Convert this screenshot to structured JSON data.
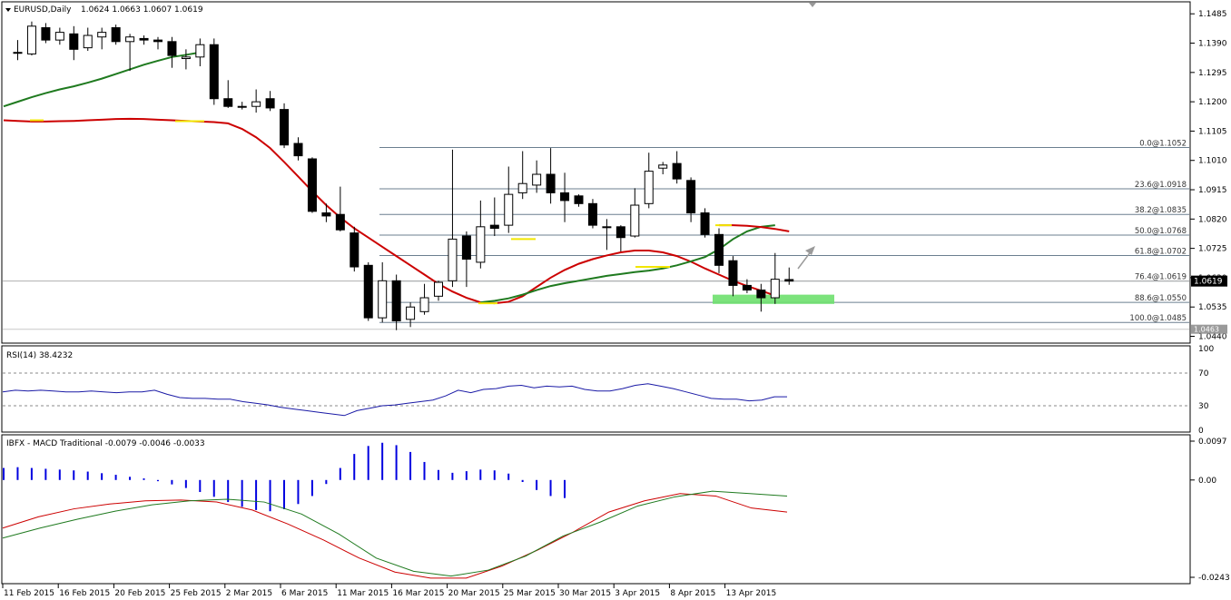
{
  "chart_data": [
    {
      "type": "candlestick",
      "title": "EURUSD,Daily",
      "ohlc_header": "1.0624 1.0663 1.0607 1.0619",
      "current_price_label": "1.0619",
      "low_price_label": "1.0463",
      "ylim": [
        1.0418,
        1.1518
      ],
      "y_ticks": [
        "1.1485",
        "1.1390",
        "1.1295",
        "1.1200",
        "1.1105",
        "1.1010",
        "1.0915",
        "1.0820",
        "1.0725",
        "1.0630",
        "1.0535",
        "1.0440"
      ],
      "x_tick_labels": [
        "11 Feb 2015",
        "16 Feb 2015",
        "20 Feb 2015",
        "25 Feb 2015",
        "2 Mar 2015",
        "6 Mar 2015",
        "11 Mar 2015",
        "16 Mar 2015",
        "20 Mar 2015",
        "25 Mar 2015",
        "30 Mar 2015",
        "3 Apr 2015",
        "8 Apr 2015",
        "13 Apr 2015"
      ],
      "candles": [
        [
          1.136,
          1.14,
          1.1335,
          1.136
        ],
        [
          1.1355,
          1.146,
          1.135,
          1.1445
        ],
        [
          1.144,
          1.1455,
          1.139,
          1.14
        ],
        [
          1.14,
          1.144,
          1.1385,
          1.1425
        ],
        [
          1.142,
          1.1445,
          1.1335,
          1.137
        ],
        [
          1.1375,
          1.144,
          1.1365,
          1.1415
        ],
        [
          1.141,
          1.144,
          1.137,
          1.1425
        ],
        [
          1.144,
          1.145,
          1.1385,
          1.1395
        ],
        [
          1.1395,
          1.142,
          1.13,
          1.141
        ],
        [
          1.1405,
          1.1415,
          1.1385,
          1.14
        ],
        [
          1.14,
          1.141,
          1.137,
          1.1395
        ],
        [
          1.1395,
          1.141,
          1.131,
          1.135
        ],
        [
          1.134,
          1.137,
          1.1305,
          1.1345
        ],
        [
          1.1345,
          1.1405,
          1.1315,
          1.1385
        ],
        [
          1.1385,
          1.1405,
          1.119,
          1.121
        ],
        [
          1.121,
          1.127,
          1.118,
          1.1185
        ],
        [
          1.1185,
          1.12,
          1.1175,
          1.1185
        ],
        [
          1.1185,
          1.124,
          1.1165,
          1.12
        ],
        [
          1.121,
          1.1235,
          1.117,
          1.118
        ],
        [
          1.1175,
          1.1195,
          1.105,
          1.106
        ],
        [
          1.1065,
          1.1085,
          1.101,
          1.1025
        ],
        [
          1.1015,
          1.102,
          1.084,
          1.0845
        ],
        [
          1.084,
          1.087,
          1.081,
          1.083
        ],
        [
          1.0835,
          1.0925,
          1.078,
          1.0785
        ],
        [
          1.0775,
          1.0795,
          1.065,
          1.0665
        ],
        [
          1.067,
          1.068,
          1.049,
          1.05
        ],
        [
          1.05,
          1.068,
          1.0485,
          1.062
        ],
        [
          1.062,
          1.064,
          1.046,
          1.049
        ],
        [
          1.0495,
          1.055,
          1.047,
          1.0535
        ],
        [
          1.052,
          1.061,
          1.051,
          1.0565
        ],
        [
          1.057,
          1.062,
          1.0555,
          1.0615
        ],
        [
          1.062,
          1.1045,
          1.06,
          1.0755
        ],
        [
          1.0765,
          1.078,
          1.06,
          1.069
        ],
        [
          1.068,
          1.088,
          1.066,
          1.0795
        ],
        [
          1.08,
          1.089,
          1.0765,
          1.079
        ],
        [
          1.08,
          1.099,
          1.0775,
          1.09
        ],
        [
          1.0905,
          1.104,
          1.0885,
          1.0935
        ],
        [
          1.093,
          1.101,
          1.0905,
          1.0965
        ],
        [
          1.0965,
          1.105,
          1.087,
          1.0905
        ],
        [
          1.0905,
          1.097,
          1.081,
          1.088
        ],
        [
          1.0895,
          1.09,
          1.086,
          1.087
        ],
        [
          1.087,
          1.0885,
          1.079,
          1.08
        ],
        [
          1.0795,
          1.082,
          1.072,
          1.0795
        ],
        [
          1.0795,
          1.08,
          1.0715,
          1.076
        ],
        [
          1.0765,
          1.092,
          1.076,
          1.0865
        ],
        [
          1.087,
          1.1035,
          1.0855,
          1.0975
        ],
        [
          1.0985,
          1.1005,
          1.0965,
          1.0995
        ],
        [
          1.1,
          1.104,
          1.0935,
          1.095
        ],
        [
          1.0945,
          1.0955,
          1.081,
          1.084
        ],
        [
          1.084,
          1.0855,
          1.076,
          1.077
        ],
        [
          1.077,
          1.079,
          1.0645,
          1.067
        ],
        [
          1.0685,
          1.07,
          1.057,
          1.0605
        ],
        [
          1.0605,
          1.0625,
          1.058,
          1.059
        ],
        [
          1.059,
          1.061,
          1.052,
          1.0565
        ],
        [
          1.0565,
          1.071,
          1.0545,
          1.0625
        ],
        [
          1.0624,
          1.0663,
          1.0607,
          1.0619
        ]
      ],
      "moving_averages": [
        {
          "color": "#cc0000",
          "values": [
            1.114,
            1.1138,
            1.1136,
            1.1136,
            1.1137,
            1.1138,
            1.114,
            1.1142,
            1.1144,
            1.1145,
            1.1144,
            1.1142,
            1.114,
            1.1138,
            1.1136,
            1.1134,
            1.113,
            1.1112,
            1.1085,
            1.105,
            1.1005,
            1.0958,
            1.091,
            1.0865,
            1.0825,
            1.079,
            1.076,
            1.073,
            1.07,
            1.067,
            1.064,
            1.061,
            1.0585,
            1.0565,
            1.055,
            1.0547,
            1.0552,
            1.057,
            1.06,
            1.063,
            1.0655,
            1.0675,
            1.069,
            1.0702,
            1.0712,
            1.0718,
            1.0718,
            1.0712,
            1.07,
            1.0682,
            1.066,
            1.064,
            1.062,
            1.0603,
            1.0588,
            1.0572
          ]
        },
        {
          "color": "#1f7a1f",
          "values": [
            1.1185,
            1.12,
            1.1215,
            1.1228,
            1.124,
            1.125,
            1.1262,
            1.1275,
            1.129,
            1.1305,
            1.132,
            1.1333,
            1.1345,
            1.1352,
            1.136
          ]
        },
        {
          "color": "#1f7a1f",
          "values": [
            1.055,
            1.0555,
            1.0563,
            1.0575,
            1.059,
            1.0603,
            1.0612,
            1.062,
            1.0628,
            1.0636,
            1.0642,
            1.0648,
            1.0653,
            1.066,
            1.067,
            1.0683,
            1.0697,
            1.0722,
            1.0755,
            1.078,
            1.0795,
            1.08
          ]
        },
        {
          "color": "#cc0000",
          "values": [
            1.08,
            1.08,
            1.0798,
            1.0794,
            1.0788,
            1.078
          ]
        }
      ],
      "fibonacci": [
        {
          "label": "0.0@1.1052",
          "price": 1.1052
        },
        {
          "label": "23.6@1.0918",
          "price": 1.0918
        },
        {
          "label": "38.2@1.0835",
          "price": 1.0835
        },
        {
          "label": "50.0@1.0768",
          "price": 1.0768
        },
        {
          "label": "61.8@1.0702",
          "price": 1.0702
        },
        {
          "label": "76.4@1.0619",
          "price": 1.0619
        },
        {
          "label": "88.6@1.0550",
          "price": 1.055
        },
        {
          "label": "100.0@1.0485",
          "price": 1.0485
        }
      ],
      "support_zone": [
        1.0545,
        1.0575
      ]
    },
    {
      "type": "line",
      "title": "RSI(14) 38.4232",
      "ylim": [
        0,
        100
      ],
      "y_ticks": [
        "100",
        "70",
        "30",
        "0"
      ],
      "levels": [
        70,
        30
      ],
      "values": [
        47,
        49,
        48,
        49,
        48,
        47,
        47,
        48,
        47,
        46,
        47,
        47,
        49,
        44,
        40,
        39,
        39,
        38,
        38,
        35,
        33,
        31,
        28,
        26,
        24,
        22,
        20,
        18,
        24,
        27,
        30,
        31,
        33,
        35,
        37,
        42,
        49,
        46,
        50,
        51,
        54,
        55,
        52,
        54,
        53,
        54,
        50,
        48,
        48,
        51,
        55,
        57,
        54,
        51,
        47,
        43,
        39,
        38,
        38,
        36,
        37,
        41,
        41
      ]
    },
    {
      "type": "bar+line",
      "title": "IBFX - MACD Traditional -0.0079 -0.0046 -0.0033",
      "ylim": [
        -0.0243,
        0.0097
      ],
      "y_ticks": [
        "0.0097",
        "0.00",
        "-0.0243"
      ],
      "histogram": [
        0.003,
        0.0032,
        0.003,
        0.0028,
        0.0026,
        0.0024,
        0.0021,
        0.0017,
        0.0013,
        0.0008,
        0.0004,
        -0.0003,
        -0.0011,
        -0.002,
        -0.003,
        -0.0042,
        -0.0055,
        -0.0067,
        -0.0075,
        -0.0078,
        -0.0073,
        -0.006,
        -0.004,
        -0.001,
        0.003,
        0.0065,
        0.0085,
        0.0093,
        0.0087,
        0.007,
        0.0045,
        0.0025,
        0.0018,
        0.0022,
        0.0026,
        0.0024,
        0.0016,
        -0.0005,
        -0.0025,
        -0.004,
        -0.0045
      ],
      "signal_values": [
        -0.0145,
        -0.012,
        -0.0098,
        -0.0078,
        -0.0062,
        -0.0052,
        -0.0048,
        -0.0055,
        -0.0085,
        -0.0135,
        -0.0195,
        -0.0228,
        -0.024,
        -0.0225,
        -0.019,
        -0.014,
        -0.0105,
        -0.0065,
        -0.0042,
        -0.0028,
        -0.0034,
        -0.004
      ],
      "main_values": [
        -0.012,
        -0.0092,
        -0.0072,
        -0.006,
        -0.0052,
        -0.005,
        -0.0055,
        -0.0075,
        -0.011,
        -0.015,
        -0.0195,
        -0.023,
        -0.0245,
        -0.0245,
        -0.0215,
        -0.0175,
        -0.013,
        -0.008,
        -0.0052,
        -0.0034,
        -0.004,
        -0.007,
        -0.008
      ]
    }
  ]
}
